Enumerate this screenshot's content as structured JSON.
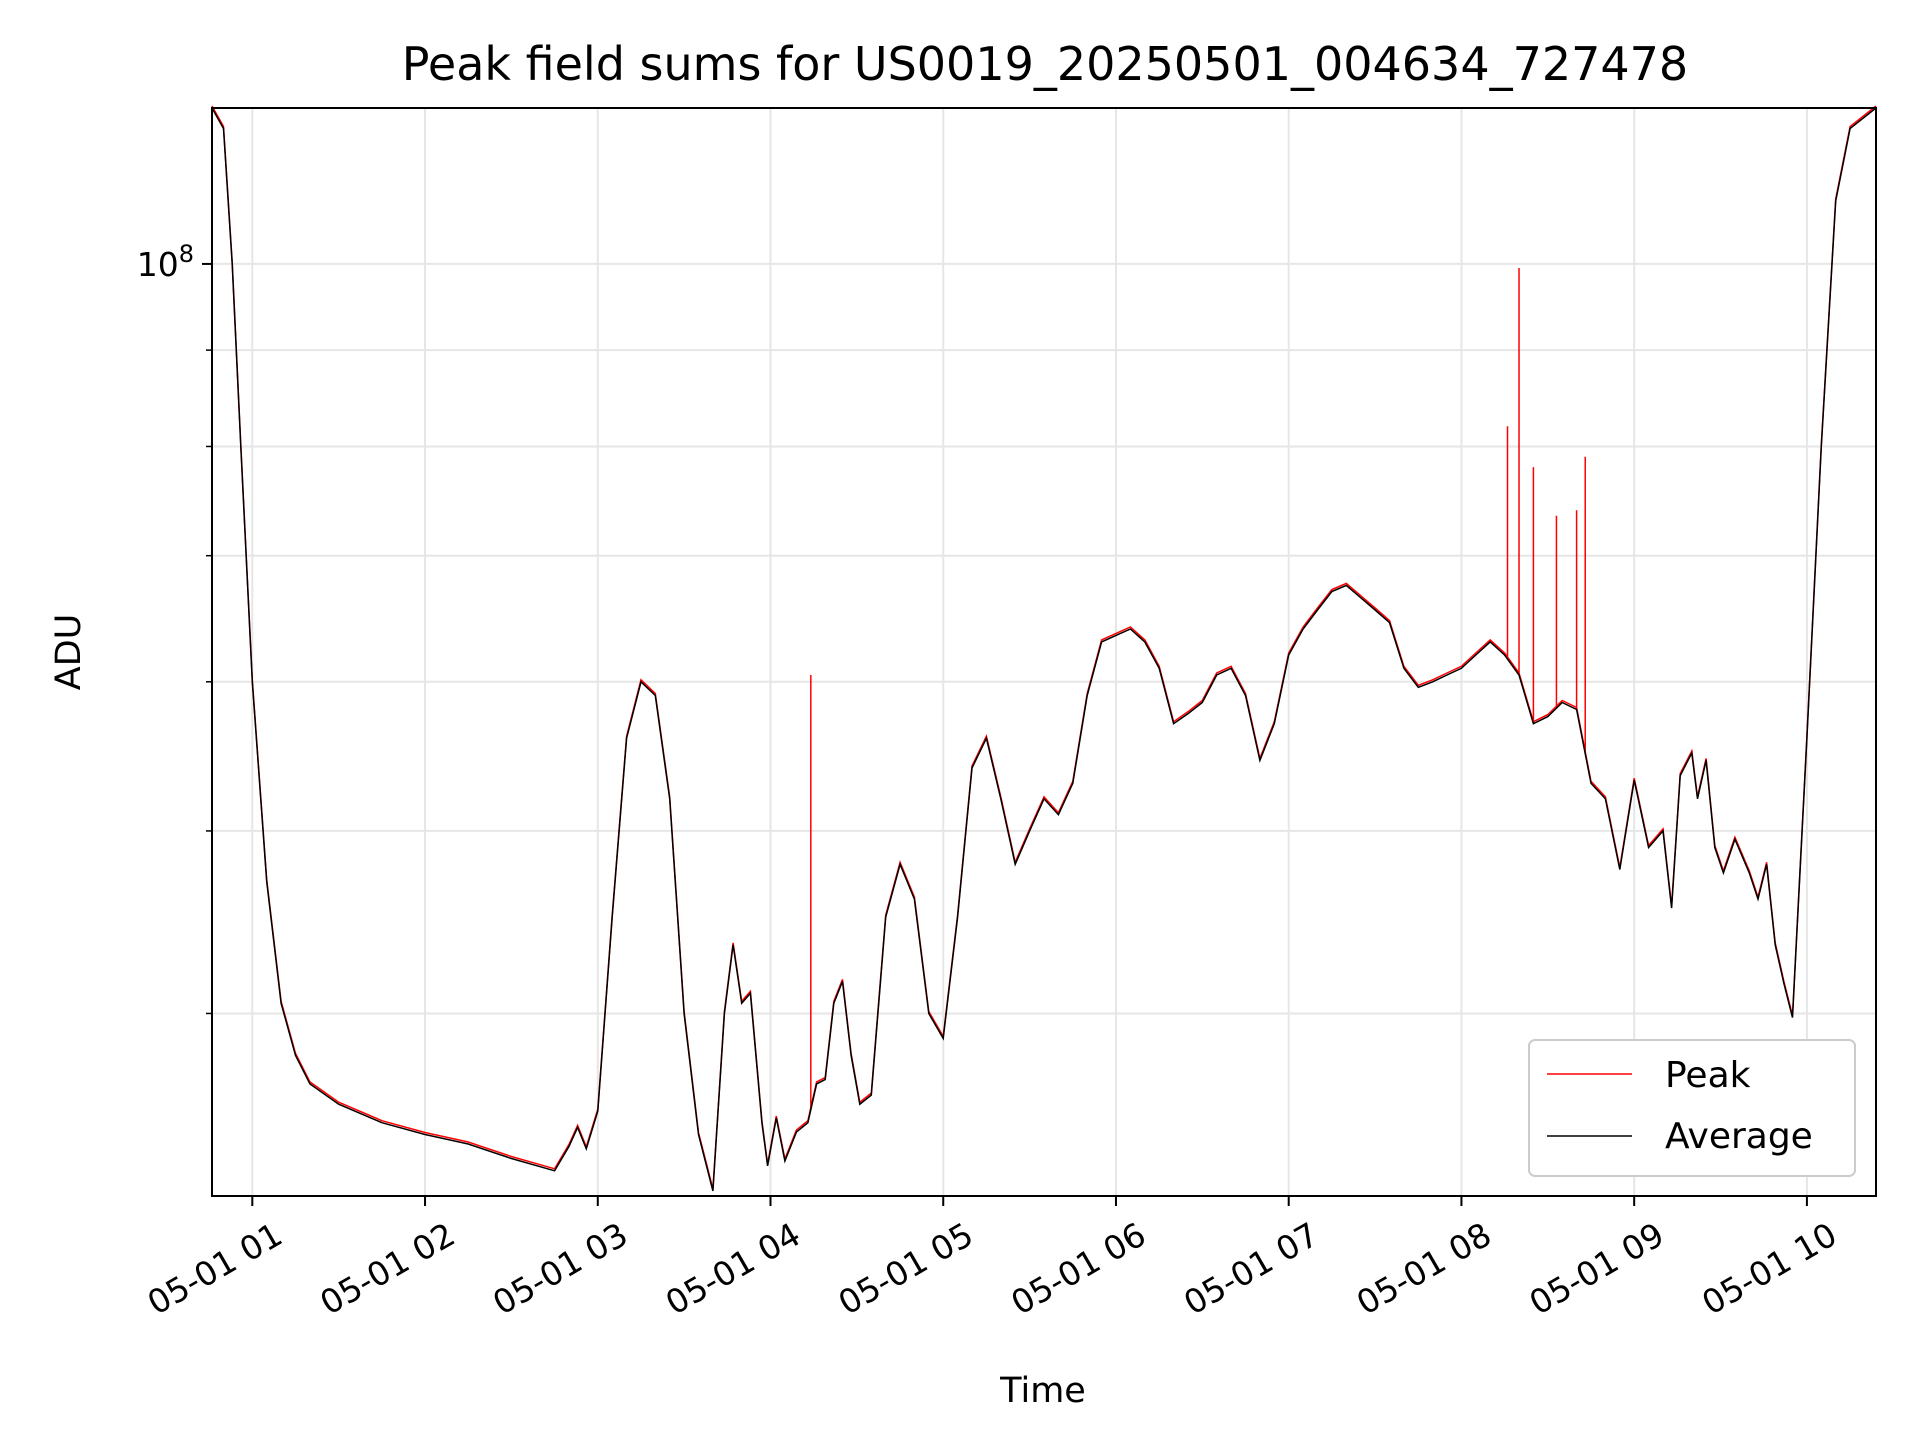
{
  "chart_data": {
    "type": "line",
    "title": "Peak field sums for US0019_20250501_004634_727478",
    "xlabel": "Time",
    "ylabel": "ADU",
    "yscale": "log",
    "grid": true,
    "legend_position": "lower-right",
    "xlim": [
      "2025-05-01 00:46",
      "2025-05-01 10:24"
    ],
    "ylim": [
      32000000,
      121000000
    ],
    "x_ticks": [
      "05-01 01",
      "05-01 02",
      "05-01 03",
      "05-01 04",
      "05-01 05",
      "05-01 06",
      "05-01 07",
      "05-01 08",
      "05-01 09",
      "05-01 10"
    ],
    "y_ticks": [
      {
        "value": 100000000,
        "base": "10",
        "exp": "8"
      }
    ],
    "colors": {
      "peak": "#ff0000",
      "average": "#000000"
    },
    "series": [
      {
        "name": "Average",
        "color": "#000000",
        "points": [
          [
            "2025-05-01 00:46",
            121000000
          ],
          [
            "2025-05-01 00:50",
            118000000
          ],
          [
            "2025-05-01 00:53",
            100000000
          ],
          [
            "2025-05-01 00:56",
            80000000
          ],
          [
            "2025-05-01 01:00",
            60000000
          ],
          [
            "2025-05-01 01:05",
            47000000
          ],
          [
            "2025-05-01 01:10",
            40500000
          ],
          [
            "2025-05-01 01:15",
            38000000
          ],
          [
            "2025-05-01 01:20",
            36700000
          ],
          [
            "2025-05-01 01:30",
            35800000
          ],
          [
            "2025-05-01 01:45",
            35000000
          ],
          [
            "2025-05-01 02:00",
            34500000
          ],
          [
            "2025-05-01 02:15",
            34100000
          ],
          [
            "2025-05-01 02:30",
            33500000
          ],
          [
            "2025-05-01 02:45",
            33000000
          ],
          [
            "2025-05-01 02:50",
            34000000
          ],
          [
            "2025-05-01 02:53",
            34800000
          ],
          [
            "2025-05-01 02:56",
            33900000
          ],
          [
            "2025-05-01 03:00",
            35500000
          ],
          [
            "2025-05-01 03:05",
            45000000
          ],
          [
            "2025-05-01 03:10",
            56000000
          ],
          [
            "2025-05-01 03:15",
            60000000
          ],
          [
            "2025-05-01 03:20",
            59000000
          ],
          [
            "2025-05-01 03:25",
            52000000
          ],
          [
            "2025-05-01 03:30",
            40000000
          ],
          [
            "2025-05-01 03:35",
            34500000
          ],
          [
            "2025-05-01 03:40",
            32200000
          ],
          [
            "2025-05-01 03:44",
            40000000
          ],
          [
            "2025-05-01 03:47",
            43500000
          ],
          [
            "2025-05-01 03:50",
            40500000
          ],
          [
            "2025-05-01 03:53",
            41000000
          ],
          [
            "2025-05-01 03:57",
            35000000
          ],
          [
            "2025-05-01 03:59",
            33200000
          ],
          [
            "2025-05-01 04:02",
            35200000
          ],
          [
            "2025-05-01 04:05",
            33400000
          ],
          [
            "2025-05-01 04:09",
            34600000
          ],
          [
            "2025-05-01 04:13",
            35000000
          ],
          [
            "2025-05-01 04:16",
            36700000
          ],
          [
            "2025-05-01 04:19",
            36900000
          ],
          [
            "2025-05-01 04:22",
            40500000
          ],
          [
            "2025-05-01 04:25",
            41600000
          ],
          [
            "2025-05-01 04:28",
            38000000
          ],
          [
            "2025-05-01 04:31",
            35800000
          ],
          [
            "2025-05-01 04:35",
            36200000
          ],
          [
            "2025-05-01 04:40",
            45000000
          ],
          [
            "2025-05-01 04:45",
            48000000
          ],
          [
            "2025-05-01 04:50",
            46000000
          ],
          [
            "2025-05-01 04:55",
            40000000
          ],
          [
            "2025-05-01 05:00",
            38800000
          ],
          [
            "2025-05-01 05:05",
            45000000
          ],
          [
            "2025-05-01 05:10",
            54000000
          ],
          [
            "2025-05-01 05:15",
            56000000
          ],
          [
            "2025-05-01 05:20",
            52000000
          ],
          [
            "2025-05-01 05:25",
            48000000
          ],
          [
            "2025-05-01 05:30",
            50000000
          ],
          [
            "2025-05-01 05:35",
            52000000
          ],
          [
            "2025-05-01 05:40",
            51000000
          ],
          [
            "2025-05-01 05:45",
            53000000
          ],
          [
            "2025-05-01 05:50",
            59000000
          ],
          [
            "2025-05-01 05:55",
            63000000
          ],
          [
            "2025-05-01 06:00",
            63500000
          ],
          [
            "2025-05-01 06:05",
            64000000
          ],
          [
            "2025-05-01 06:10",
            63000000
          ],
          [
            "2025-05-01 06:15",
            61000000
          ],
          [
            "2025-05-01 06:20",
            57000000
          ],
          [
            "2025-05-01 06:25",
            57700000
          ],
          [
            "2025-05-01 06:30",
            58500000
          ],
          [
            "2025-05-01 06:35",
            60500000
          ],
          [
            "2025-05-01 06:40",
            61000000
          ],
          [
            "2025-05-01 06:45",
            59000000
          ],
          [
            "2025-05-01 06:50",
            54500000
          ],
          [
            "2025-05-01 06:55",
            57000000
          ],
          [
            "2025-05-01 07:00",
            62000000
          ],
          [
            "2025-05-01 07:05",
            64000000
          ],
          [
            "2025-05-01 07:10",
            65500000
          ],
          [
            "2025-05-01 07:15",
            67000000
          ],
          [
            "2025-05-01 07:20",
            67500000
          ],
          [
            "2025-05-01 07:25",
            66500000
          ],
          [
            "2025-05-01 07:30",
            65500000
          ],
          [
            "2025-05-01 07:35",
            64500000
          ],
          [
            "2025-05-01 07:40",
            61000000
          ],
          [
            "2025-05-01 07:45",
            59600000
          ],
          [
            "2025-05-01 07:50",
            60000000
          ],
          [
            "2025-05-01 07:55",
            60500000
          ],
          [
            "2025-05-01 08:00",
            61000000
          ],
          [
            "2025-05-01 08:05",
            62000000
          ],
          [
            "2025-05-01 08:10",
            63000000
          ],
          [
            "2025-05-01 08:15",
            62000000
          ],
          [
            "2025-05-01 08:20",
            60500000
          ],
          [
            "2025-05-01 08:25",
            57000000
          ],
          [
            "2025-05-01 08:30",
            57500000
          ],
          [
            "2025-05-01 08:35",
            58500000
          ],
          [
            "2025-05-01 08:40",
            58000000
          ],
          [
            "2025-05-01 08:45",
            53000000
          ],
          [
            "2025-05-01 08:50",
            52000000
          ],
          [
            "2025-05-01 08:55",
            47700000
          ],
          [
            "2025-05-01 09:00",
            53200000
          ],
          [
            "2025-05-01 09:05",
            49000000
          ],
          [
            "2025-05-01 09:10",
            50000000
          ],
          [
            "2025-05-01 09:13",
            45500000
          ],
          [
            "2025-05-01 09:16",
            53500000
          ],
          [
            "2025-05-01 09:20",
            55000000
          ],
          [
            "2025-05-01 09:22",
            52000000
          ],
          [
            "2025-05-01 09:25",
            54500000
          ],
          [
            "2025-05-01 09:28",
            49000000
          ],
          [
            "2025-05-01 09:31",
            47500000
          ],
          [
            "2025-05-01 09:35",
            49500000
          ],
          [
            "2025-05-01 09:40",
            47500000
          ],
          [
            "2025-05-01 09:43",
            46000000
          ],
          [
            "2025-05-01 09:46",
            48000000
          ],
          [
            "2025-05-01 09:49",
            43500000
          ],
          [
            "2025-05-01 09:52",
            41500000
          ],
          [
            "2025-05-01 09:55",
            39800000
          ],
          [
            "2025-05-01 10:00",
            56000000
          ],
          [
            "2025-05-01 10:05",
            80000000
          ],
          [
            "2025-05-01 10:10",
            108000000
          ],
          [
            "2025-05-01 10:15",
            118000000
          ],
          [
            "2025-05-01 10:24",
            121000000
          ]
        ]
      },
      {
        "name": "Peak",
        "color": "#ff0000",
        "note_spikes": true,
        "spikes": [
          [
            "2025-05-01 04:14",
            60500000
          ],
          [
            "2025-05-01 08:16",
            82000000
          ],
          [
            "2025-05-01 08:20",
            99500000
          ],
          [
            "2025-05-01 08:25",
            78000000
          ],
          [
            "2025-05-01 08:33",
            73500000
          ],
          [
            "2025-05-01 08:40",
            74000000
          ],
          [
            "2025-05-01 08:43",
            79000000
          ]
        ]
      }
    ]
  }
}
